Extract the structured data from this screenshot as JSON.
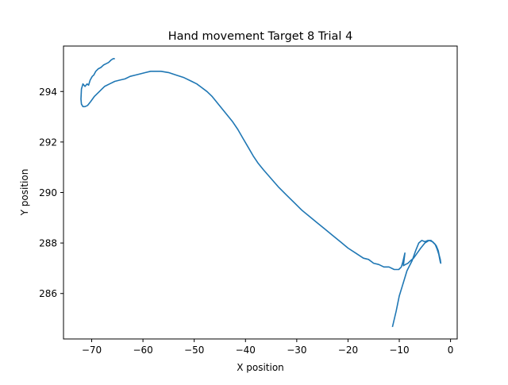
{
  "chart_data": {
    "type": "line",
    "title": "Hand movement Target 8 Trial 4",
    "xlabel": "X position",
    "ylabel": "Y position",
    "xlim": [
      -75.5,
      1.3
    ],
    "ylim": [
      284.2,
      295.8
    ],
    "x_ticks": [
      -70,
      -60,
      -50,
      -40,
      -30,
      -20,
      -10,
      0
    ],
    "x_tick_labels": [
      "−70",
      "−60",
      "−50",
      "−40",
      "−30",
      "−20",
      "−10",
      "0"
    ],
    "y_ticks": [
      286,
      288,
      290,
      292,
      294
    ],
    "y_tick_labels": [
      "286",
      "288",
      "290",
      "292",
      "294"
    ],
    "grid": false,
    "series": [
      {
        "color": "#1f77b4",
        "x": [
          -11.3,
          -10.6,
          -10.0,
          -9.4,
          -8.5,
          -7.5,
          -6.8,
          -6.2,
          -5.6,
          -5.0,
          -4.4,
          -3.8,
          -3.3,
          -2.8,
          -2.4,
          -2.2,
          -2.0,
          -1.9,
          -2.0,
          -2.3,
          -2.6,
          -3.0,
          -3.5,
          -4.2,
          -5.0,
          -5.8,
          -6.5,
          -7.2,
          -7.8,
          -8.3,
          -8.8,
          -9.2,
          -8.9,
          -9.3,
          -9.6,
          -10.1,
          -11.0,
          -12.0,
          -13.0,
          -14.0,
          -15.0,
          -16.0,
          -17.0,
          -18.5,
          -20.0,
          -21.5,
          -23.0,
          -24.5,
          -26.0,
          -27.5,
          -29.0,
          -30.5,
          -32.0,
          -33.5,
          -35.0,
          -36.5,
          -37.5,
          -38.5,
          -39.5,
          -40.5,
          -41.5,
          -42.5,
          -43.5,
          -44.5,
          -45.5,
          -46.5,
          -47.5,
          -48.5,
          -49.5,
          -50.5,
          -52.0,
          -53.5,
          -55.0,
          -56.5,
          -57.5,
          -58.5,
          -59.5,
          -60.5,
          -61.5,
          -62.5,
          -63.5,
          -64.5,
          -65.5,
          -66.5,
          -67.5,
          -68.5,
          -69.5,
          -70.2,
          -70.8,
          -71.3,
          -71.7,
          -72.0,
          -72.1,
          -72.0,
          -71.7,
          -71.3,
          -70.9,
          -70.6,
          -70.3,
          -69.9,
          -69.6,
          -69.2,
          -68.7,
          -68.2,
          -67.7,
          -67.2,
          -66.7,
          -66.2,
          -65.8,
          -65.6
        ],
        "y": [
          284.7,
          285.3,
          285.9,
          286.3,
          286.9,
          287.3,
          287.7,
          288.0,
          288.1,
          288.05,
          288.1,
          288.1,
          288.0,
          287.9,
          287.7,
          287.5,
          287.35,
          287.2,
          287.25,
          287.55,
          287.75,
          287.95,
          288.05,
          288.1,
          288.0,
          287.8,
          287.6,
          287.4,
          287.3,
          287.2,
          287.15,
          287.1,
          287.6,
          287.25,
          287.05,
          286.95,
          286.95,
          287.05,
          287.05,
          287.15,
          287.2,
          287.35,
          287.4,
          287.6,
          287.8,
          288.05,
          288.3,
          288.55,
          288.8,
          289.05,
          289.3,
          289.6,
          289.9,
          290.2,
          290.55,
          290.9,
          291.15,
          291.45,
          291.8,
          292.15,
          292.5,
          292.8,
          293.05,
          293.3,
          293.55,
          293.8,
          294.0,
          294.15,
          294.3,
          294.4,
          294.55,
          294.65,
          294.75,
          294.8,
          294.8,
          294.8,
          294.75,
          294.7,
          294.65,
          294.6,
          294.5,
          294.45,
          294.4,
          294.3,
          294.2,
          294.0,
          293.8,
          293.6,
          293.45,
          293.4,
          293.4,
          293.5,
          293.7,
          294.1,
          294.3,
          294.2,
          294.3,
          294.25,
          294.45,
          294.6,
          294.65,
          294.8,
          294.9,
          294.95,
          295.05,
          295.1,
          295.15,
          295.25,
          295.3,
          295.3
        ]
      }
    ]
  }
}
